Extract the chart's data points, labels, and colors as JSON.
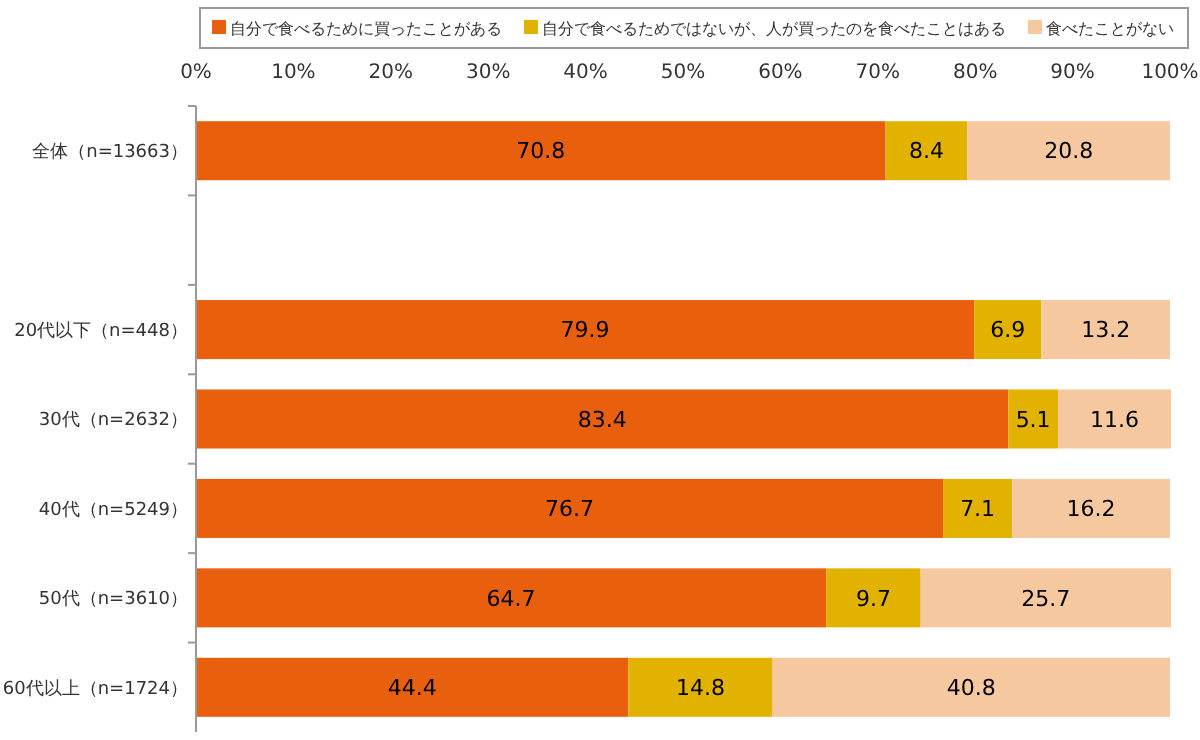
{
  "chart_data": {
    "type": "bar",
    "orientation": "horizontal",
    "stacked": true,
    "data_labels": true,
    "grid": false,
    "legend": "top",
    "categories": [
      "全体（n=13663）",
      null,
      "20代以下（n=448）",
      "30代（n=2632）",
      "40代（n=5249）",
      "50代（n=3610）",
      "60代以上（n=1724）"
    ],
    "series": [
      {
        "name": "自分で食べるために買ったことがある",
        "color": "#e8600e",
        "values": [
          70.8,
          null,
          79.9,
          83.4,
          76.7,
          64.7,
          44.4
        ]
      },
      {
        "name": "自分で食べるためではないが、人が買ったのを食べたことはある",
        "color": "#e2b200",
        "values": [
          8.4,
          null,
          6.9,
          5.1,
          7.1,
          9.7,
          14.8
        ]
      },
      {
        "name": "食べたことがない",
        "color": "#f5c8a0",
        "values": [
          20.8,
          null,
          13.2,
          11.6,
          16.2,
          25.7,
          40.8
        ]
      }
    ],
    "xlim": [
      0,
      100
    ],
    "xticks": [
      {
        "value": 0,
        "label": "0%"
      },
      {
        "value": 10,
        "label": "10%"
      },
      {
        "value": 20,
        "label": "20%"
      },
      {
        "value": 30,
        "label": "30%"
      },
      {
        "value": 40,
        "label": "40%"
      },
      {
        "value": 50,
        "label": "50%"
      },
      {
        "value": 60,
        "label": "60%"
      },
      {
        "value": 70,
        "label": "70%"
      },
      {
        "value": 80,
        "label": "80%"
      },
      {
        "value": 90,
        "label": "90%"
      },
      {
        "value": 100,
        "label": "100%"
      }
    ]
  }
}
